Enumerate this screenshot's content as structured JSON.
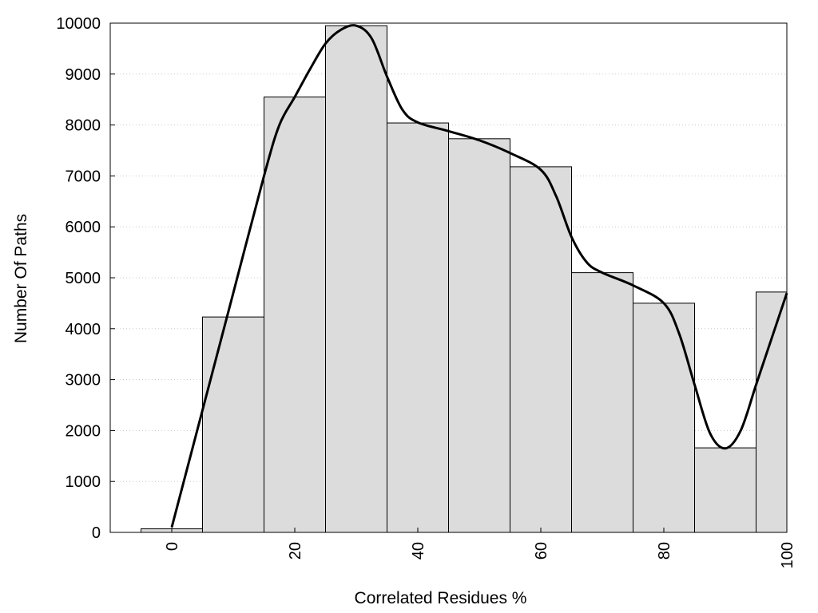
{
  "chart_data": {
    "type": "bar",
    "title": "",
    "xlabel": "Correlated Residues %",
    "ylabel": "Number Of Paths",
    "xlim": [
      -10,
      100
    ],
    "ylim": [
      0,
      10000
    ],
    "bin_width": 10,
    "x_ticks": [
      "0",
      "20",
      "40",
      "60",
      "80",
      "100"
    ],
    "y_ticks": [
      "0",
      "1000",
      "2000",
      "3000",
      "4000",
      "5000",
      "6000",
      "7000",
      "8000",
      "9000",
      "10000"
    ],
    "grid": {
      "y": true,
      "style": "dotted"
    },
    "legend": "none",
    "bars": [
      {
        "center": 0,
        "value": 70
      },
      {
        "center": 10,
        "value": 4230
      },
      {
        "center": 20,
        "value": 8550
      },
      {
        "center": 30,
        "value": 9950
      },
      {
        "center": 40,
        "value": 8040
      },
      {
        "center": 50,
        "value": 7730
      },
      {
        "center": 60,
        "value": 7180
      },
      {
        "center": 70,
        "value": 5100
      },
      {
        "center": 80,
        "value": 4500
      },
      {
        "center": 90,
        "value": 1660
      },
      {
        "center": 100,
        "value": 4720
      }
    ],
    "curve": {
      "x": [
        0,
        5,
        10,
        15,
        17.5,
        20,
        22.5,
        25,
        27.5,
        30,
        32.5,
        35,
        37.5,
        40,
        45,
        50,
        55,
        60,
        62.5,
        65,
        67.5,
        70,
        75,
        80,
        82.5,
        85,
        87.5,
        90,
        92.5,
        95,
        97.5,
        100
      ],
      "y": [
        100,
        2400,
        4700,
        7000,
        8000,
        8550,
        9100,
        9600,
        9870,
        9950,
        9700,
        8950,
        8300,
        8050,
        7880,
        7700,
        7450,
        7120,
        6600,
        5800,
        5300,
        5100,
        4850,
        4500,
        3900,
        2900,
        1950,
        1650,
        2000,
        2900,
        3800,
        4700
      ]
    },
    "colors": {
      "bar_fill": "#dcdcdc",
      "bar_stroke": "#000000",
      "curve": "#000000",
      "grid": "#c8c8c8"
    }
  }
}
